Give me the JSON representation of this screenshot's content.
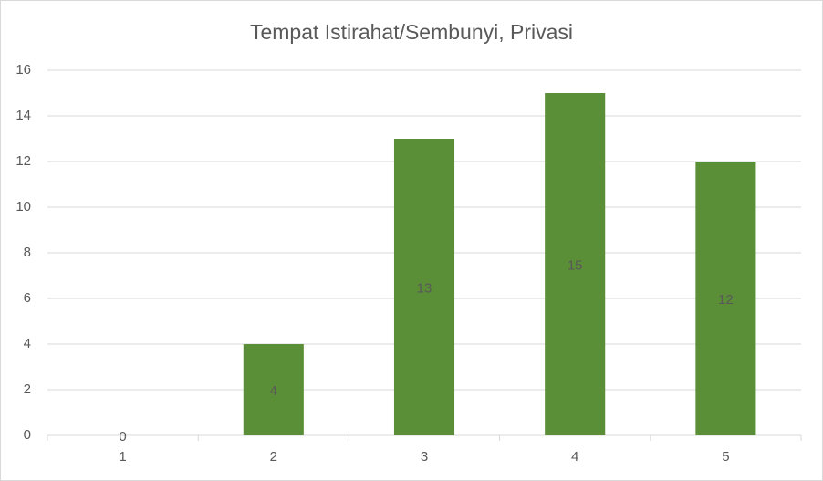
{
  "chart_data": {
    "type": "bar",
    "title": "Tempat Istirahat/Sembunyi, Privasi",
    "categories": [
      "1",
      "2",
      "3",
      "4",
      "5"
    ],
    "values": [
      0,
      4,
      13,
      15,
      12
    ],
    "color": "#5b8f37",
    "ylim": [
      0,
      16
    ],
    "yticks": [
      0,
      2,
      4,
      6,
      8,
      10,
      12,
      14,
      16
    ],
    "grid": true,
    "data_labels": true
  }
}
